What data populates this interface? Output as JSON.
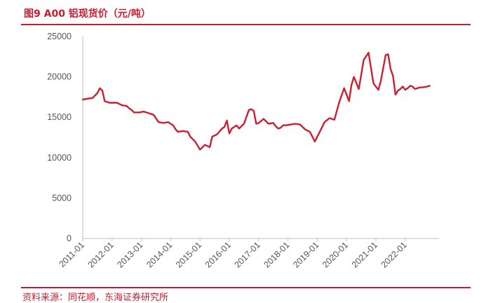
{
  "header": {
    "title": "图9 A00 铝现货价（元/吨）",
    "source": "资料来源：同花顺，东海证券研究所"
  },
  "colors": {
    "accent": "#c41f30",
    "series": "#cc1f2f",
    "axis": "#bfbfbf",
    "tick_text": "#555555"
  },
  "chart_data": {
    "type": "line",
    "title": "图9 A00 铝现货价（元/吨）",
    "xlabel": "",
    "ylabel": "",
    "ylim": [
      0,
      25000
    ],
    "y_ticks": [
      0,
      5000,
      10000,
      15000,
      20000,
      25000
    ],
    "x_tick_labels": [
      "2011-01",
      "2012-01",
      "2013-01",
      "2014-01",
      "2015-01",
      "2016-01",
      "2017-01",
      "2018-01",
      "2019-01",
      "2020-01",
      "2021-01",
      "2022-01"
    ],
    "x_range": [
      "2011-01",
      "2022-12"
    ],
    "grid": false,
    "legend": "none",
    "series": [
      {
        "x": [
          "2011-01",
          "2011-03",
          "2011-05",
          "2011-07",
          "2011-08",
          "2011-09",
          "2011-10",
          "2011-12",
          "2012-03",
          "2012-05",
          "2012-07",
          "2012-08",
          "2012-09",
          "2012-10",
          "2012-12",
          "2013-02",
          "2013-04",
          "2013-06",
          "2013-08",
          "2013-10",
          "2013-12",
          "2014-02",
          "2014-03",
          "2014-04",
          "2014-06",
          "2014-08",
          "2014-09",
          "2014-11",
          "2015-01",
          "2015-03",
          "2015-05",
          "2015-06",
          "2015-08",
          "2015-10",
          "2015-11",
          "2015-12",
          "2016-01",
          "2016-02",
          "2016-04",
          "2016-05",
          "2016-07",
          "2016-09",
          "2016-10",
          "2016-11",
          "2016-12",
          "2017-01",
          "2017-03",
          "2017-05",
          "2017-07",
          "2017-08",
          "2017-09",
          "2017-10",
          "2017-11",
          "2017-12",
          "2018-02",
          "2018-04",
          "2018-06",
          "2018-08",
          "2018-10",
          "2018-12",
          "2019-02",
          "2019-04",
          "2019-06",
          "2019-08",
          "2019-10",
          "2019-12",
          "2020-02",
          "2020-03",
          "2020-04",
          "2020-06",
          "2020-08",
          "2020-10",
          "2020-12",
          "2021-02",
          "2021-03",
          "2021-05",
          "2021-06",
          "2021-07",
          "2021-08",
          "2021-09",
          "2021-10",
          "2021-11",
          "2021-12",
          "2022-01",
          "2022-02",
          "2022-03",
          "2022-04",
          "2022-05",
          "2022-06",
          "2022-07",
          "2022-08",
          "2022-10",
          "2022-11"
        ],
        "values": [
          17200,
          17300,
          17400,
          18000,
          18600,
          18300,
          17000,
          16800,
          16800,
          16500,
          16400,
          16100,
          15900,
          15600,
          15600,
          15700,
          15500,
          15300,
          14400,
          14300,
          14400,
          14000,
          13500,
          13200,
          13300,
          13200,
          12600,
          12000,
          11000,
          11600,
          11300,
          12600,
          12900,
          13600,
          13800,
          14600,
          13000,
          13600,
          14000,
          13600,
          14200,
          15900,
          16000,
          15800,
          14200,
          14300,
          14800,
          14200,
          14300,
          13900,
          13600,
          13700,
          14000,
          14000,
          14100,
          14200,
          14100,
          13500,
          13200,
          12000,
          13200,
          14400,
          14900,
          14700,
          16900,
          18600,
          17000,
          19000,
          20000,
          18500,
          22100,
          23000,
          19200,
          18400,
          19500,
          22700,
          22800,
          21000,
          20100,
          17800,
          18300,
          18500,
          18800,
          18400,
          18600,
          18900,
          18800,
          18500,
          18600,
          18700,
          18700,
          18800,
          18900
        ]
      }
    ]
  }
}
